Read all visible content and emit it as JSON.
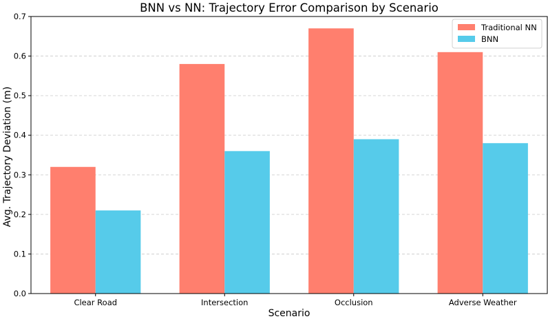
{
  "chart_data": {
    "type": "bar",
    "title": "BNN vs NN: Trajectory Error Comparison by Scenario",
    "xlabel": "Scenario",
    "ylabel": "Avg. Trajectory Deviation (m)",
    "categories": [
      "Clear Road",
      "Intersection",
      "Occlusion",
      "Adverse Weather"
    ],
    "series": [
      {
        "name": "Traditional NN",
        "color": "#ff7f6e",
        "values": [
          0.32,
          0.58,
          0.67,
          0.61
        ]
      },
      {
        "name": "BNN",
        "color": "#56cbea",
        "values": [
          0.21,
          0.36,
          0.39,
          0.38
        ]
      }
    ],
    "ylim": [
      0,
      0.7
    ],
    "yticks": [
      "0.0",
      "0.1",
      "0.2",
      "0.3",
      "0.4",
      "0.5",
      "0.6",
      "0.7"
    ],
    "grid": "horizontal dashed",
    "legend_position": "top-right"
  }
}
